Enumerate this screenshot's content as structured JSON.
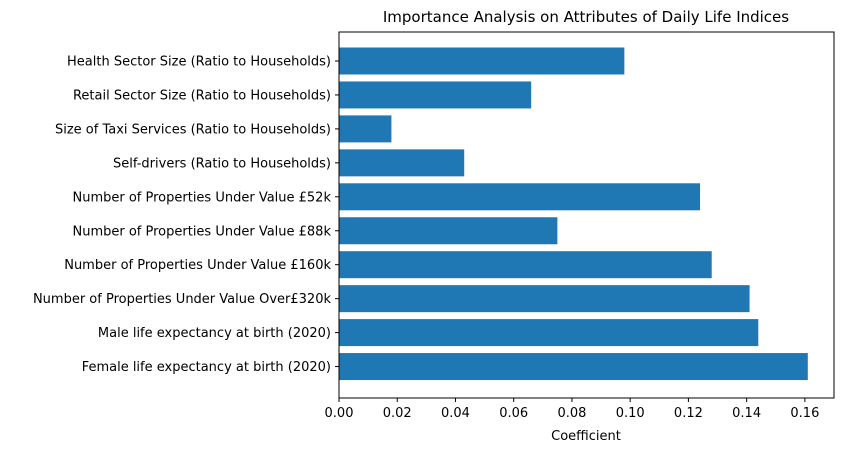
{
  "chart_data": {
    "type": "bar",
    "orientation": "horizontal",
    "title": "Importance Analysis on Attributes of Daily Life Indices",
    "xlabel": "Coefficient",
    "ylabel": "",
    "xlim": [
      0.0,
      0.17
    ],
    "xticks": [
      "0.00",
      "0.02",
      "0.04",
      "0.06",
      "0.08",
      "0.10",
      "0.12",
      "0.14",
      "0.16"
    ],
    "categories": [
      "Health Sector Size (Ratio to Households)",
      "Retail Sector Size (Ratio to Households)",
      "Size of Taxi Services (Ratio to Households)",
      "Self-drivers (Ratio to Households)",
      "Number of Properties Under Value £52k",
      "Number of Properties Under Value £88k",
      "Number of Properties Under Value £160k",
      "Number of Properties Under Value Over£320k",
      "Male life expectancy at birth (2020)",
      "Female life expectancy at birth (2020)"
    ],
    "values": [
      0.098,
      0.066,
      0.018,
      0.043,
      0.124,
      0.075,
      0.128,
      0.141,
      0.144,
      0.161
    ],
    "bar_color": "#1f77b4",
    "grid": false,
    "legend": "none"
  }
}
